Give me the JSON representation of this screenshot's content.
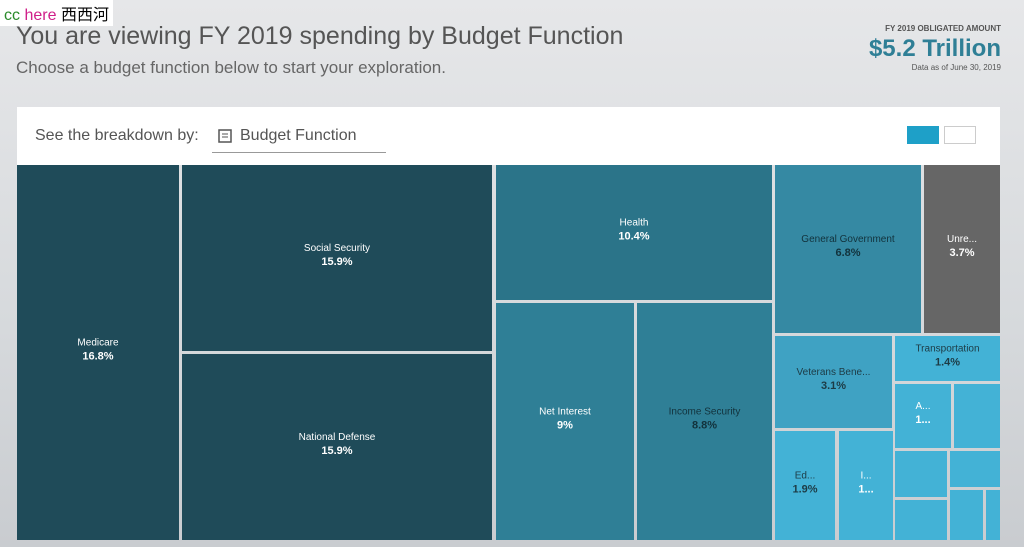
{
  "watermark": {
    "cc": "cc",
    "here": "here",
    "site": "西西河"
  },
  "header": {
    "title": "You are viewing FY 2019 spending by Budget Function",
    "subtitle": "Choose a budget function below to start your exploration."
  },
  "summary": {
    "label": "FY 2019 OBLIGATED AMOUNT",
    "amount": "$5.2 Trillion",
    "note": "Data as of June 30, 2019"
  },
  "toolbar": {
    "label": "See the breakdown by:",
    "selected": "Budget Function"
  },
  "treemap": {
    "tiles": [
      {
        "label": "Medicare",
        "value": 16.8,
        "value_label": "16.8%"
      },
      {
        "label": "Social Security",
        "value": 15.9,
        "value_label": "15.9%"
      },
      {
        "label": "National Defense",
        "value": 15.9,
        "value_label": "15.9%"
      },
      {
        "label": "Health",
        "value": 10.4,
        "value_label": "10.4%"
      },
      {
        "label": "Net Interest",
        "value": 9,
        "value_label": "9%"
      },
      {
        "label": "Income Security",
        "value": 8.8,
        "value_label": "8.8%"
      },
      {
        "label": "General Government",
        "value": 6.8,
        "value_label": "6.8%"
      },
      {
        "label": "Unre...",
        "value": 3.7,
        "value_label": "3.7%"
      },
      {
        "label": "Veterans Bene...",
        "value": 3.1,
        "value_label": "3.1%"
      },
      {
        "label": "Transportation",
        "value": 1.4,
        "value_label": "1.4%"
      },
      {
        "label": "A...",
        "value_label": "1..."
      },
      {
        "label": "Ed...",
        "value": 1.9,
        "value_label": "1.9%"
      },
      {
        "label": "I...",
        "value_label": "1..."
      }
    ]
  }
}
